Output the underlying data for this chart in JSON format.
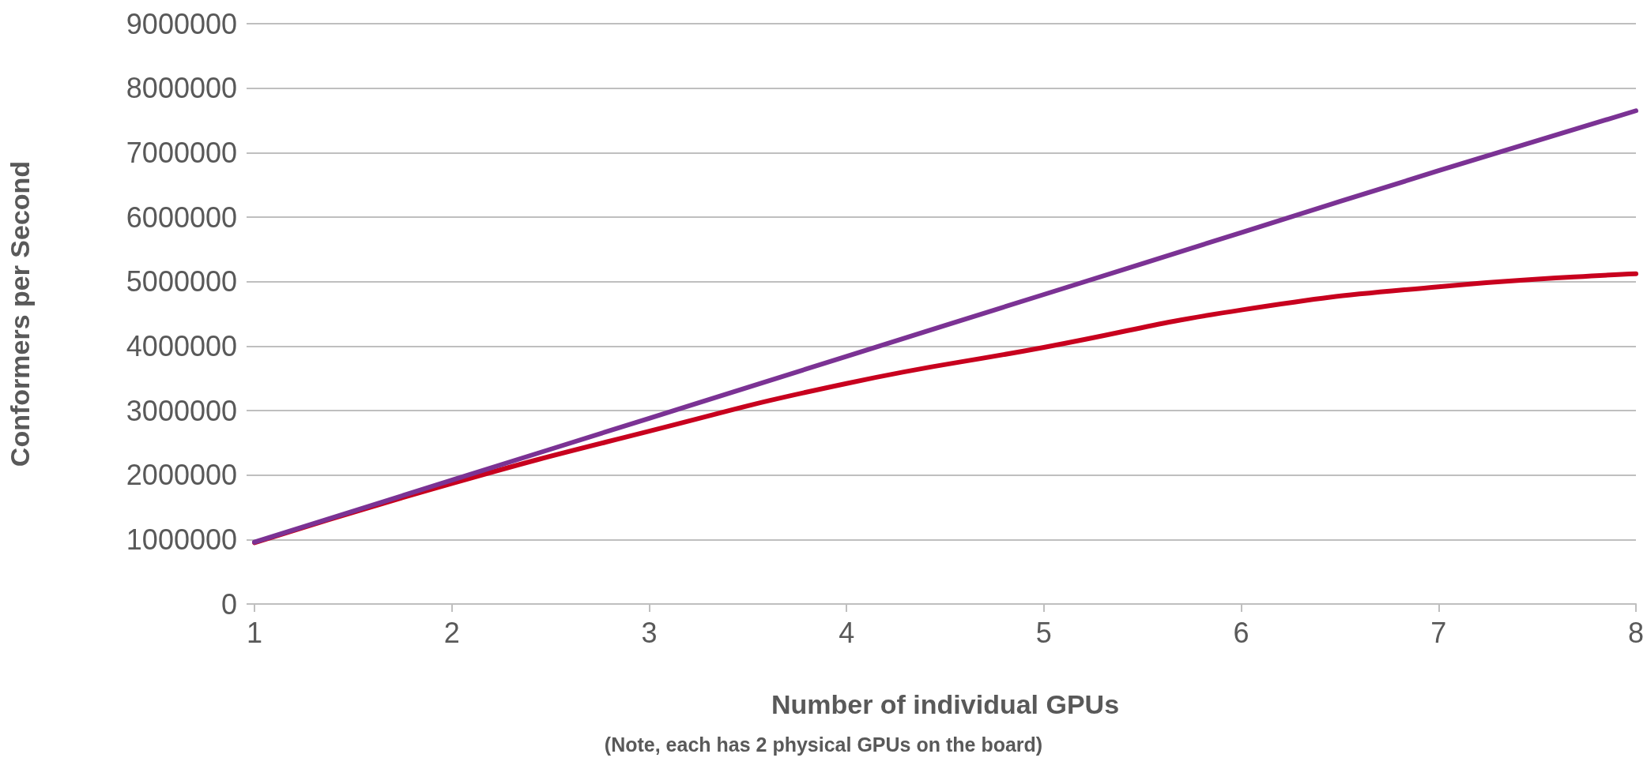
{
  "chart_data": {
    "type": "line",
    "xlabel": "Number of individual GPUs",
    "ylabel": "Conformers per Second",
    "annotations": [
      "(Note, each has 2 physical GPUs on the board)"
    ],
    "x": [
      1,
      2,
      3,
      4,
      5,
      6,
      7,
      8
    ],
    "series": [
      {
        "color": "#c8001e",
        "values": [
          950000,
          1870000,
          2680000,
          3420000,
          3980000,
          4560000,
          4920000,
          5120000
        ]
      },
      {
        "color": "#7b3294",
        "values": [
          960000,
          1920000,
          2880000,
          3840000,
          4800000,
          5760000,
          6720000,
          7650000
        ]
      }
    ],
    "xlim": [
      1,
      8
    ],
    "xticks": [
      1,
      2,
      3,
      4,
      5,
      6,
      7,
      8
    ],
    "ylim": [
      0,
      9000000
    ],
    "yticks": [
      0,
      1000000,
      2000000,
      3000000,
      4000000,
      5000000,
      6000000,
      7000000,
      8000000,
      9000000
    ],
    "grid": "y",
    "marker": "none",
    "line_style": "solid"
  }
}
